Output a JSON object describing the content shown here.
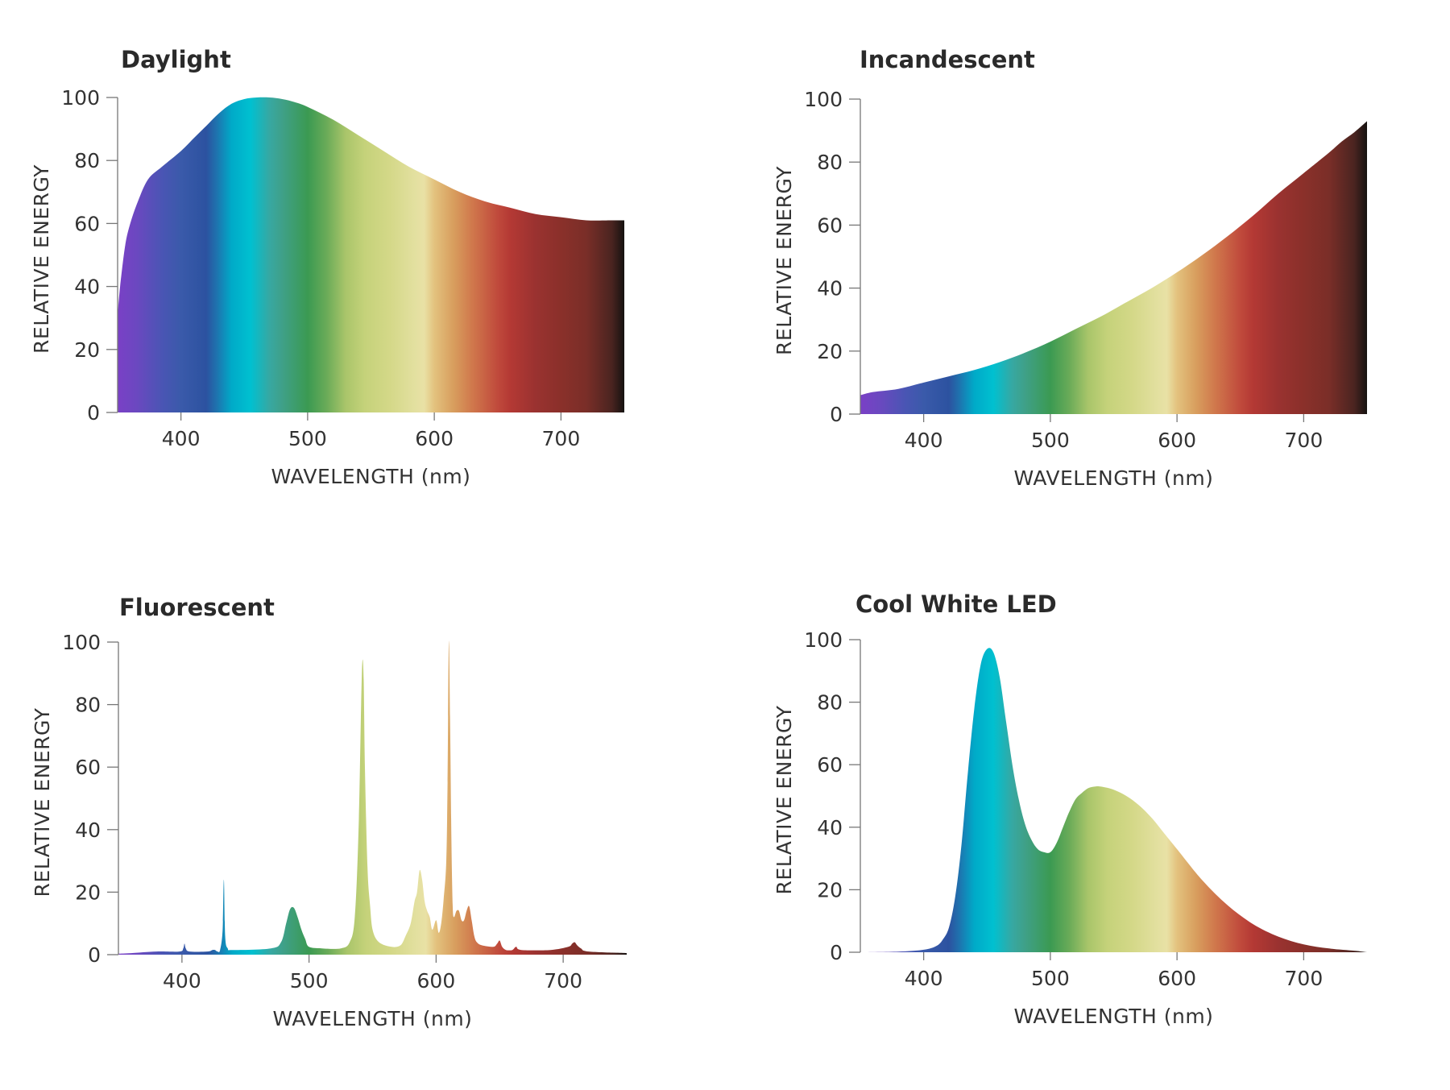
{
  "chart_data": [
    {
      "type": "area",
      "title": "Daylight",
      "xlabel": "WAVELENGTH (nm)",
      "ylabel": "RELATIVE ENERGY",
      "xlim": [
        350,
        750
      ],
      "ylim": [
        0,
        100
      ],
      "xticks": [
        "400",
        "500",
        "600",
        "700"
      ],
      "yticks": [
        "0",
        "20",
        "40",
        "60",
        "80",
        "100"
      ],
      "x": [
        350,
        352,
        356,
        360,
        366,
        374,
        385,
        400,
        410,
        420,
        430,
        440,
        450,
        460,
        470,
        480,
        490,
        500,
        520,
        540,
        560,
        580,
        600,
        620,
        640,
        660,
        680,
        700,
        720,
        740,
        750
      ],
      "values": [
        31,
        40,
        53,
        60,
        67,
        74,
        78,
        83,
        87,
        91,
        95,
        98,
        99.5,
        100,
        100,
        99.5,
        98.5,
        97,
        93,
        88,
        83,
        78,
        74,
        70,
        67,
        65,
        63,
        62,
        61,
        61,
        61
      ]
    },
    {
      "type": "area",
      "title": "Incandescent",
      "xlabel": "WAVELENGTH (nm)",
      "ylabel": "RELATIVE ENERGY",
      "xlim": [
        350,
        750
      ],
      "ylim": [
        0,
        100
      ],
      "xticks": [
        "400",
        "500",
        "600",
        "700"
      ],
      "yticks": [
        "0",
        "20",
        "40",
        "60",
        "80",
        "100"
      ],
      "x": [
        350,
        360,
        380,
        400,
        420,
        440,
        460,
        480,
        500,
        520,
        540,
        560,
        580,
        600,
        620,
        640,
        660,
        680,
        700,
        720,
        730,
        740,
        750
      ],
      "values": [
        6,
        7,
        8,
        10,
        12,
        14,
        16.5,
        19.5,
        23,
        27,
        31,
        35.5,
        40,
        45,
        50.5,
        56.5,
        63,
        70,
        76.5,
        83,
        86.5,
        89.5,
        93
      ]
    },
    {
      "type": "area",
      "title": "Fluorescent",
      "xlabel": "WAVELENGTH (nm)",
      "ylabel": "RELATIVE ENERGY",
      "xlim": [
        350,
        750
      ],
      "ylim": [
        0,
        100
      ],
      "xticks": [
        "400",
        "500",
        "600",
        "700"
      ],
      "yticks": [
        "0",
        "20",
        "40",
        "60",
        "80",
        "100"
      ],
      "x": [
        350,
        360,
        380,
        398,
        401,
        402,
        403,
        406,
        420,
        424,
        426,
        428,
        430,
        432,
        433,
        434,
        436,
        440,
        470,
        478,
        482,
        485,
        488,
        491,
        494,
        497,
        500,
        510,
        525,
        532,
        536,
        539,
        541,
        542,
        543,
        544,
        546,
        548,
        550,
        555,
        565,
        572,
        576,
        580,
        583,
        585,
        587,
        589,
        591,
        593,
        595,
        597,
        600,
        602,
        604,
        606,
        608,
        609,
        610,
        611,
        612,
        613,
        614,
        616,
        618,
        620,
        622,
        624,
        626,
        628,
        630,
        632,
        636,
        645,
        648,
        650,
        652,
        655,
        660,
        663,
        667,
        690,
        704,
        707,
        709,
        711,
        714,
        720,
        750
      ],
      "values": [
        0.3,
        0.5,
        1,
        1,
        2,
        3.5,
        2,
        1,
        1,
        1.5,
        1.5,
        1,
        1.5,
        8,
        24,
        6,
        2,
        1.5,
        2,
        4,
        10,
        14.5,
        15,
        12,
        8,
        5,
        2.5,
        2,
        2,
        4,
        12,
        40,
        80,
        94,
        88,
        60,
        28,
        16,
        8,
        4,
        2.5,
        3,
        6,
        10,
        17,
        20,
        27,
        24,
        17,
        14,
        12,
        8,
        11,
        7,
        10,
        18,
        30,
        55,
        100,
        75,
        38,
        16,
        12,
        14,
        14,
        11,
        11,
        14,
        15.5,
        11,
        6,
        4,
        3,
        2.5,
        3.5,
        4.5,
        2.5,
        1.5,
        1.5,
        2.5,
        1.5,
        1.5,
        2.5,
        3.5,
        4,
        3,
        2,
        1,
        0.5
      ]
    },
    {
      "type": "area",
      "title": "Cool White LED",
      "xlabel": "WAVELENGTH (nm)",
      "ylabel": "RELATIVE ENERGY",
      "xlim": [
        350,
        750
      ],
      "ylim": [
        0,
        100
      ],
      "xticks": [
        "400",
        "500",
        "600",
        "700"
      ],
      "yticks": [
        "0",
        "20",
        "40",
        "60",
        "80",
        "100"
      ],
      "x": [
        350,
        380,
        400,
        410,
        415,
        420,
        425,
        430,
        435,
        440,
        445,
        450,
        455,
        460,
        465,
        470,
        475,
        480,
        485,
        490,
        495,
        500,
        505,
        510,
        515,
        520,
        525,
        530,
        535,
        540,
        550,
        560,
        570,
        580,
        590,
        600,
        620,
        640,
        660,
        680,
        700,
        720,
        740,
        750
      ],
      "values": [
        0,
        0.2,
        0.8,
        2,
        4,
        8,
        18,
        35,
        58,
        78,
        92,
        97,
        96,
        88,
        74,
        60,
        49,
        41,
        36,
        33,
        32,
        32,
        35,
        40,
        45,
        49,
        51,
        52.5,
        53,
        53,
        52,
        50,
        47,
        43,
        38,
        33,
        23,
        15,
        9,
        5,
        2.5,
        1.2,
        0.5,
        0
      ]
    }
  ],
  "colors": {
    "spectrum": [
      [
        350,
        "#7a40c6"
      ],
      [
        365,
        "#6b48c0"
      ],
      [
        385,
        "#4a55b4"
      ],
      [
        400,
        "#3a5aaa"
      ],
      [
        420,
        "#2c52a0"
      ],
      [
        428,
        "#1f72ae"
      ],
      [
        440,
        "#00aac8"
      ],
      [
        455,
        "#00c0d0"
      ],
      [
        470,
        "#37a8a2"
      ],
      [
        480,
        "#3fa088"
      ],
      [
        500,
        "#3b9a52"
      ],
      [
        515,
        "#6aab58"
      ],
      [
        530,
        "#a9c56a"
      ],
      [
        545,
        "#c5d27a"
      ],
      [
        565,
        "#d4d888"
      ],
      [
        585,
        "#e3e0a0"
      ],
      [
        592,
        "#e9e1a5"
      ],
      [
        600,
        "#e3c27e"
      ],
      [
        615,
        "#d89e5e"
      ],
      [
        630,
        "#d0784c"
      ],
      [
        650,
        "#c04a3c"
      ],
      [
        660,
        "#b43934"
      ],
      [
        680,
        "#9a3230"
      ],
      [
        700,
        "#8a302a"
      ],
      [
        720,
        "#7a2e28"
      ],
      [
        740,
        "#4a2420"
      ],
      [
        750,
        "#151210"
      ]
    ]
  }
}
